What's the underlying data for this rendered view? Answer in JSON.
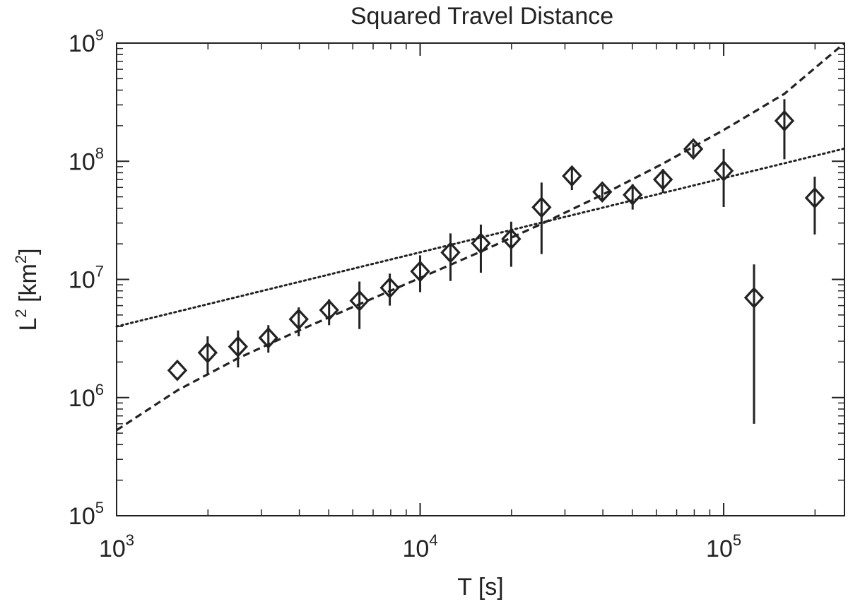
{
  "chart_data": {
    "type": "scatter",
    "title": "Squared Travel Distance",
    "xlabel": {
      "base": "T [s]"
    },
    "ylabel": {
      "prefix": "L",
      "prefix_sup": "2",
      "middle": " [km",
      "middle_sup": "2",
      "suffix": "]"
    },
    "x_scale": "log",
    "y_scale": "log",
    "xlim": [
      1000,
      250000
    ],
    "ylim": [
      100000,
      1000000000
    ],
    "x_ticks": [
      {
        "value": 1000,
        "base": "10",
        "exp": "3"
      },
      {
        "value": 10000,
        "base": "10",
        "exp": "4"
      },
      {
        "value": 100000,
        "base": "10",
        "exp": "5"
      }
    ],
    "y_ticks": [
      {
        "value": 100000,
        "base": "10",
        "exp": "5"
      },
      {
        "value": 1000000,
        "base": "10",
        "exp": "6"
      },
      {
        "value": 10000000,
        "base": "10",
        "exp": "7"
      },
      {
        "value": 100000000,
        "base": "10",
        "exp": "8"
      },
      {
        "value": 1000000000,
        "base": "10",
        "exp": "9"
      }
    ],
    "grid": false,
    "colors": {
      "ink": "#222222",
      "background": "#ffffff"
    },
    "series": [
      {
        "marker": "diamond",
        "points": [
          {
            "x": 1585,
            "y": 1700000,
            "err_low": 1700000,
            "err_high": 1700000
          },
          {
            "x": 1995,
            "y": 2400000,
            "err_low": 1600000,
            "err_high": 3300000
          },
          {
            "x": 2512,
            "y": 2700000,
            "err_low": 1800000,
            "err_high": 3700000
          },
          {
            "x": 3162,
            "y": 3200000,
            "err_low": 2400000,
            "err_high": 4100000
          },
          {
            "x": 3981,
            "y": 4600000,
            "err_low": 3300000,
            "err_high": 5800000
          },
          {
            "x": 5012,
            "y": 5500000,
            "err_low": 4100000,
            "err_high": 6800000
          },
          {
            "x": 6310,
            "y": 6600000,
            "err_low": 3800000,
            "err_high": 9600000
          },
          {
            "x": 7943,
            "y": 8500000,
            "err_low": 6000000,
            "err_high": 11200000
          },
          {
            "x": 10000,
            "y": 11700000,
            "err_low": 7800000,
            "err_high": 16000000
          },
          {
            "x": 12589,
            "y": 16900000,
            "err_low": 9700000,
            "err_high": 24500000
          },
          {
            "x": 15849,
            "y": 20200000,
            "err_low": 11400000,
            "err_high": 29100000
          },
          {
            "x": 19953,
            "y": 22000000,
            "err_low": 12800000,
            "err_high": 30800000
          },
          {
            "x": 25119,
            "y": 40800000,
            "err_low": 16400000,
            "err_high": 66000000
          },
          {
            "x": 31623,
            "y": 75000000,
            "err_low": 57000000,
            "err_high": 90000000
          },
          {
            "x": 39811,
            "y": 55000000,
            "err_low": 47000000,
            "err_high": 63000000
          },
          {
            "x": 50119,
            "y": 52000000,
            "err_low": 39000000,
            "err_high": 64000000
          },
          {
            "x": 63096,
            "y": 70000000,
            "err_low": 54000000,
            "err_high": 86000000
          },
          {
            "x": 79433,
            "y": 127000000,
            "err_low": 111000000,
            "err_high": 143000000
          },
          {
            "x": 100000,
            "y": 83000000,
            "err_low": 41000000,
            "err_high": 127000000
          },
          {
            "x": 125893,
            "y": 7000000,
            "err_low": 600000,
            "err_high": 13400000
          },
          {
            "x": 158489,
            "y": 220000000,
            "err_low": 104000000,
            "err_high": 335000000
          },
          {
            "x": 199526,
            "y": 49000000,
            "err_low": 24000000,
            "err_high": 74000000
          }
        ]
      },
      {
        "type": "line",
        "style": "dashed",
        "x": [
          1000,
          1585,
          2512,
          3981,
          6310,
          10000,
          15849,
          25119,
          39811,
          63096,
          100000,
          158489,
          250000
        ],
        "y": [
          530000,
          1150000,
          2150000,
          3690000,
          6180000,
          10300000,
          17200000,
          29500000,
          52000000,
          95500000,
          184000000,
          372000000,
          1000000000
        ]
      },
      {
        "type": "line",
        "style": "dotted",
        "x": [
          1000,
          250000
        ],
        "y": [
          4000000,
          128000000
        ]
      }
    ]
  }
}
